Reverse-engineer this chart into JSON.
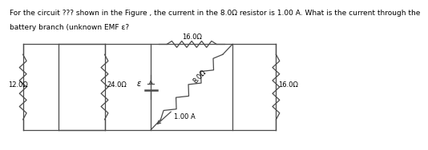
{
  "title_line1": "For the circuit ??? shown in the Figure , the current in the 8.0Ω resistor is 1.00 A. What is the current through the",
  "title_line2": "battery branch (unknown EMF ε?",
  "title_fontsize": 6.5,
  "bg_color": "#ffffff",
  "resistor_12": "12.0Ω",
  "resistor_24": "24.0Ω",
  "resistor_16top": "16.0Ω",
  "resistor_8": "8.0Ω",
  "resistor_16bot": "16.0Ω",
  "emf_label": "ε",
  "current_label": "1.00 A",
  "line_color": "#4a4a4a",
  "text_color": "#000000"
}
